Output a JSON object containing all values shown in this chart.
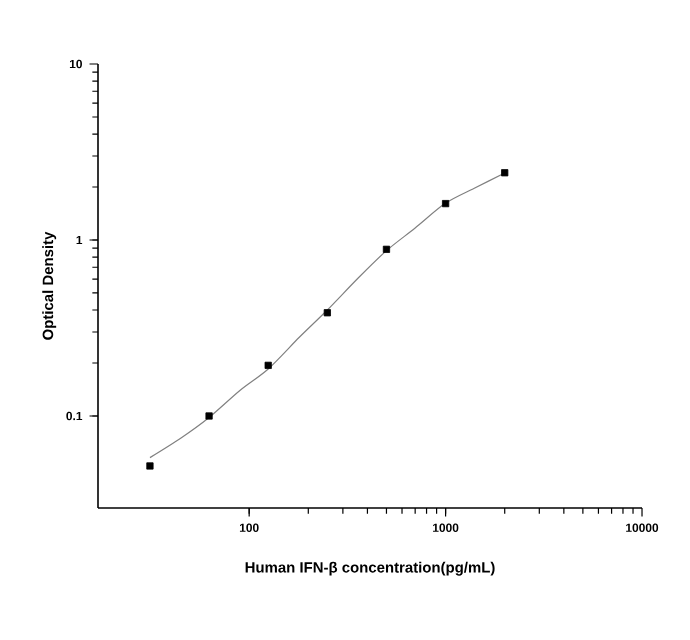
{
  "chart_data": {
    "type": "scatter",
    "xlabel": "Human IFN-β  concentration(pg/mL)",
    "ylabel": "Optical Density",
    "log": "xy",
    "xlim": [
      17,
      10000
    ],
    "ylim": [
      0.03,
      10
    ],
    "xticks": [
      100,
      1000,
      10000
    ],
    "yticks": [
      0.1,
      1,
      10
    ],
    "series": [
      {
        "type": "line",
        "color": "#808080",
        "line_style": "solid",
        "marker": "none",
        "x": [
          31.25,
          45,
          62.5,
          90,
          125,
          180,
          250,
          360,
          500,
          700,
          1000,
          1400,
          2000
        ],
        "values": [
          0.058,
          0.075,
          0.098,
          0.14,
          0.185,
          0.28,
          0.4,
          0.61,
          0.87,
          1.17,
          1.62,
          1.97,
          2.4
        ]
      },
      {
        "color": "#000000",
        "marker": "square",
        "x": [
          31.25,
          62.5,
          125,
          250,
          500,
          1000,
          2000
        ],
        "values": [
          0.052,
          0.1,
          0.194,
          0.386,
          0.885,
          1.61,
          2.41
        ]
      }
    ]
  }
}
